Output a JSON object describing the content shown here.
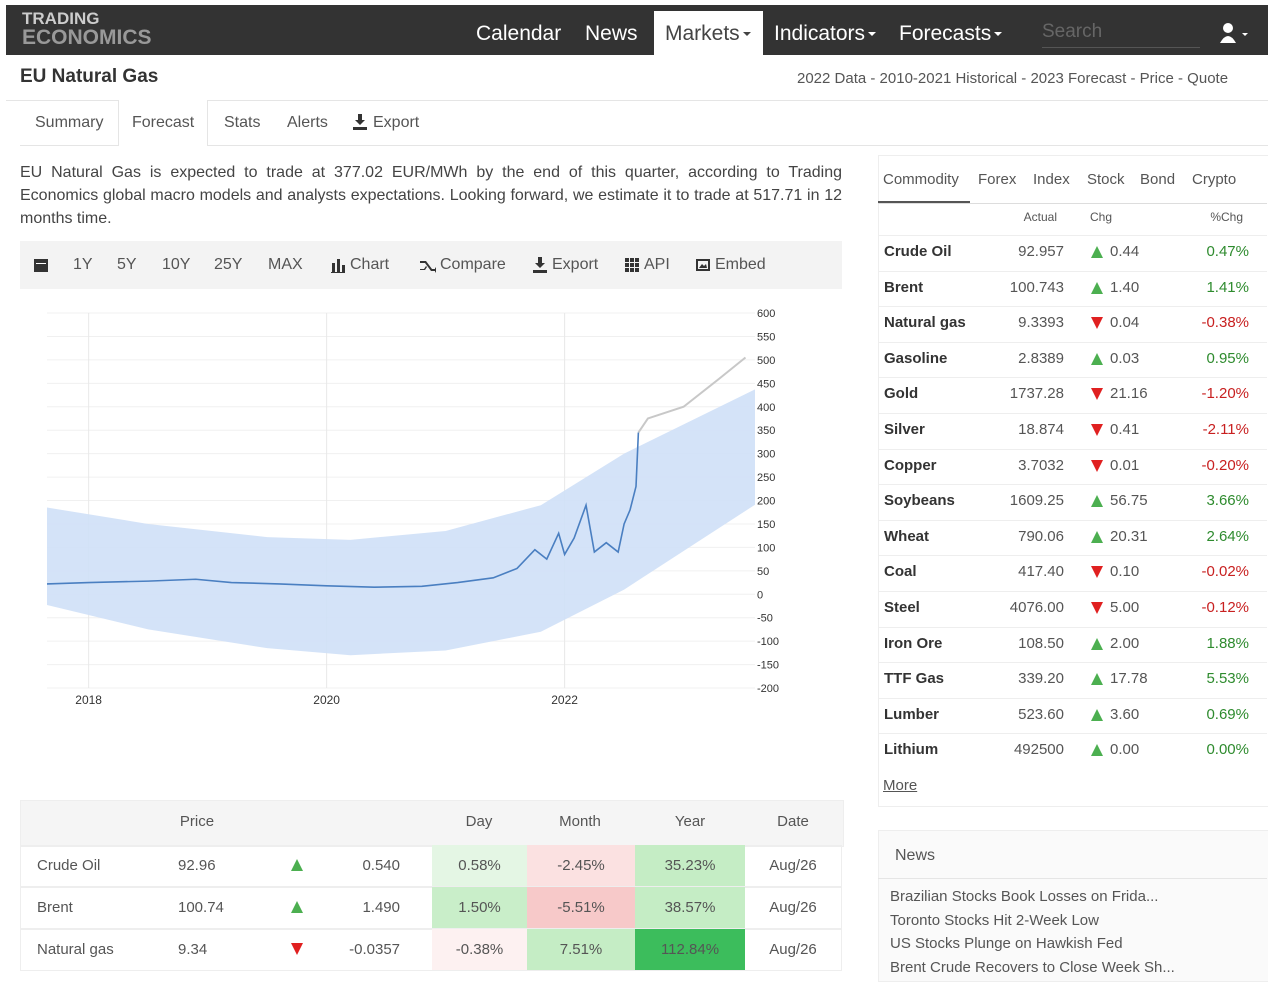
{
  "nav": {
    "logo_top": "TRADING",
    "logo_bottom": "ECONOMICS",
    "items": [
      "Calendar",
      "News",
      "Markets",
      "Indicators",
      "Forecasts"
    ],
    "active_index": 2,
    "dropdown": [
      false,
      false,
      true,
      true,
      true
    ],
    "search_placeholder": "Search"
  },
  "header": {
    "title": "EU Natural Gas",
    "links": "2022 Data - 2010-2021 Historical - 2023 Forecast - Price - Quote"
  },
  "tabs": {
    "items": [
      "Summary",
      "Forecast",
      "Stats",
      "Alerts",
      "Export"
    ],
    "active_index": 1
  },
  "paragraph": "EU Natural Gas is expected to trade at 377.02 EUR/MWh by the end of this quarter, according to Trading Economics global macro models and analysts expectations. Looking forward, we estimate it to trade at 517.71 in 12 months time.",
  "toolbar": [
    "1Y",
    "5Y",
    "10Y",
    "25Y",
    "MAX",
    "Chart",
    "Compare",
    "Export",
    "API",
    "Embed"
  ],
  "chart": {
    "type": "line",
    "xlim": [
      2017.65,
      2023.6
    ],
    "xticks": [
      2018,
      2020,
      2022
    ],
    "ylim": [
      -200,
      600
    ],
    "yticks": [
      600,
      550,
      500,
      450,
      400,
      350,
      300,
      250,
      200,
      150,
      100,
      50,
      0,
      -50,
      -100,
      -150,
      -200
    ],
    "history": {
      "color": "#4a7fc1",
      "x": [
        2017.65,
        2018,
        2018.5,
        2018.9,
        2019.2,
        2019.6,
        2020,
        2020.4,
        2020.8,
        2021.1,
        2021.4,
        2021.6,
        2021.75,
        2021.85,
        2021.95,
        2022.0,
        2022.08,
        2022.18,
        2022.25,
        2022.35,
        2022.45,
        2022.5,
        2022.55,
        2022.6,
        2022.62
      ],
      "values": [
        22,
        25,
        28,
        32,
        25,
        22,
        18,
        15,
        17,
        25,
        35,
        55,
        95,
        75,
        130,
        85,
        120,
        190,
        90,
        110,
        90,
        150,
        180,
        230,
        345
      ]
    },
    "forecast": {
      "color": "#c8c8c8",
      "x": [
        2022.62,
        2022.7,
        2023,
        2023.3,
        2023.52
      ],
      "values": [
        345,
        375,
        400,
        460,
        505
      ]
    },
    "band": {
      "color": "#cfe0f7",
      "x": [
        2017.65,
        2018.5,
        2019.5,
        2020.2,
        2021,
        2021.8,
        2022.5,
        2023.6
      ],
      "upper": [
        185,
        150,
        122,
        116,
        135,
        190,
        300,
        437
      ],
      "lower": [
        -23,
        -75,
        -115,
        -130,
        -120,
        -80,
        10,
        191
      ]
    }
  },
  "markets": {
    "tabs": [
      "Commodity",
      "Forex",
      "Index",
      "Stock",
      "Bond",
      "Crypto"
    ],
    "columns": [
      "Actual",
      "Chg",
      "%Chg"
    ],
    "rows": [
      {
        "name": "Crude Oil",
        "actual": "92.957",
        "chg": "0.44",
        "pct": "0.47%",
        "dir": "up"
      },
      {
        "name": "Brent",
        "actual": "100.743",
        "chg": "1.40",
        "pct": "1.41%",
        "dir": "up"
      },
      {
        "name": "Natural gas",
        "actual": "9.3393",
        "chg": "0.04",
        "pct": "-0.38%",
        "dir": "down"
      },
      {
        "name": "Gasoline",
        "actual": "2.8389",
        "chg": "0.03",
        "pct": "0.95%",
        "dir": "up"
      },
      {
        "name": "Gold",
        "actual": "1737.28",
        "chg": "21.16",
        "pct": "-1.20%",
        "dir": "down"
      },
      {
        "name": "Silver",
        "actual": "18.874",
        "chg": "0.41",
        "pct": "-2.11%",
        "dir": "down"
      },
      {
        "name": "Copper",
        "actual": "3.7032",
        "chg": "0.01",
        "pct": "-0.20%",
        "dir": "down"
      },
      {
        "name": "Soybeans",
        "actual": "1609.25",
        "chg": "56.75",
        "pct": "3.66%",
        "dir": "up"
      },
      {
        "name": "Wheat",
        "actual": "790.06",
        "chg": "20.31",
        "pct": "2.64%",
        "dir": "up"
      },
      {
        "name": "Coal",
        "actual": "417.40",
        "chg": "0.10",
        "pct": "-0.02%",
        "dir": "down"
      },
      {
        "name": "Steel",
        "actual": "4076.00",
        "chg": "5.00",
        "pct": "-0.12%",
        "dir": "down"
      },
      {
        "name": "Iron Ore",
        "actual": "108.50",
        "chg": "2.00",
        "pct": "1.88%",
        "dir": "up"
      },
      {
        "name": "TTF Gas",
        "actual": "339.20",
        "chg": "17.78",
        "pct": "5.53%",
        "dir": "up"
      },
      {
        "name": "Lumber",
        "actual": "523.60",
        "chg": "3.60",
        "pct": "0.69%",
        "dir": "up"
      },
      {
        "name": "Lithium",
        "actual": "492500",
        "chg": "0.00",
        "pct": "0.00%",
        "dir": "up"
      }
    ],
    "more": "More"
  },
  "news": {
    "title": "News",
    "items": [
      "Brazilian Stocks Book Losses on Frida...",
      "Toronto Stocks Hit 2-Week Low",
      "US Stocks Plunge on Hawkish Fed",
      "Brent Crude Recovers to Close Week Sh..."
    ]
  },
  "table": {
    "headers": [
      "Price",
      "Day",
      "Month",
      "Year",
      "Date"
    ],
    "rows": [
      {
        "name": "Crude Oil",
        "price": "92.96",
        "dir": "up",
        "change": "0.540",
        "day": "0.58%",
        "month": "-2.45%",
        "year": "35.23%",
        "date": "Aug/26",
        "colors": [
          "#e4f6e4",
          "#fbe1e1",
          "#c5edc5"
        ]
      },
      {
        "name": "Brent",
        "price": "100.74",
        "dir": "up",
        "change": "1.490",
        "day": "1.50%",
        "month": "-5.51%",
        "year": "38.57%",
        "date": "Aug/26",
        "colors": [
          "#c9eec9",
          "#f7c9c9",
          "#c5edc5"
        ]
      },
      {
        "name": "Natural gas",
        "price": "9.34",
        "dir": "down",
        "change": "-0.0357",
        "day": "-0.38%",
        "month": "7.51%",
        "year": "112.84%",
        "date": "Aug/26",
        "colors": [
          "#fdf1f1",
          "#c5edc5",
          "#3cbd5c"
        ]
      }
    ]
  }
}
